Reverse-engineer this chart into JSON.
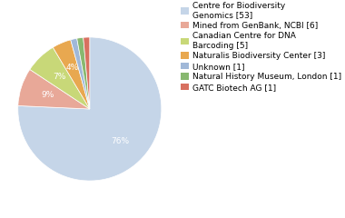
{
  "labels": [
    "Centre for Biodiversity\nGenomics [53]",
    "Mined from GenBank, NCBI [6]",
    "Canadian Centre for DNA\nBarcoding [5]",
    "Naturalis Biodiversity Center [3]",
    "Unknown [1]",
    "Natural History Museum, London [1]",
    "GATC Biotech AG [1]"
  ],
  "values": [
    53,
    6,
    5,
    3,
    1,
    1,
    1
  ],
  "colors": [
    "#c5d5e8",
    "#e8a898",
    "#c8d878",
    "#e8a850",
    "#a0b8d8",
    "#88b870",
    "#d87060"
  ],
  "startangle": 90,
  "legend_fontsize": 6.5,
  "pct_fontsize": 6.5,
  "figsize": [
    3.8,
    2.4
  ],
  "dpi": 100,
  "pct_threshold": 4
}
